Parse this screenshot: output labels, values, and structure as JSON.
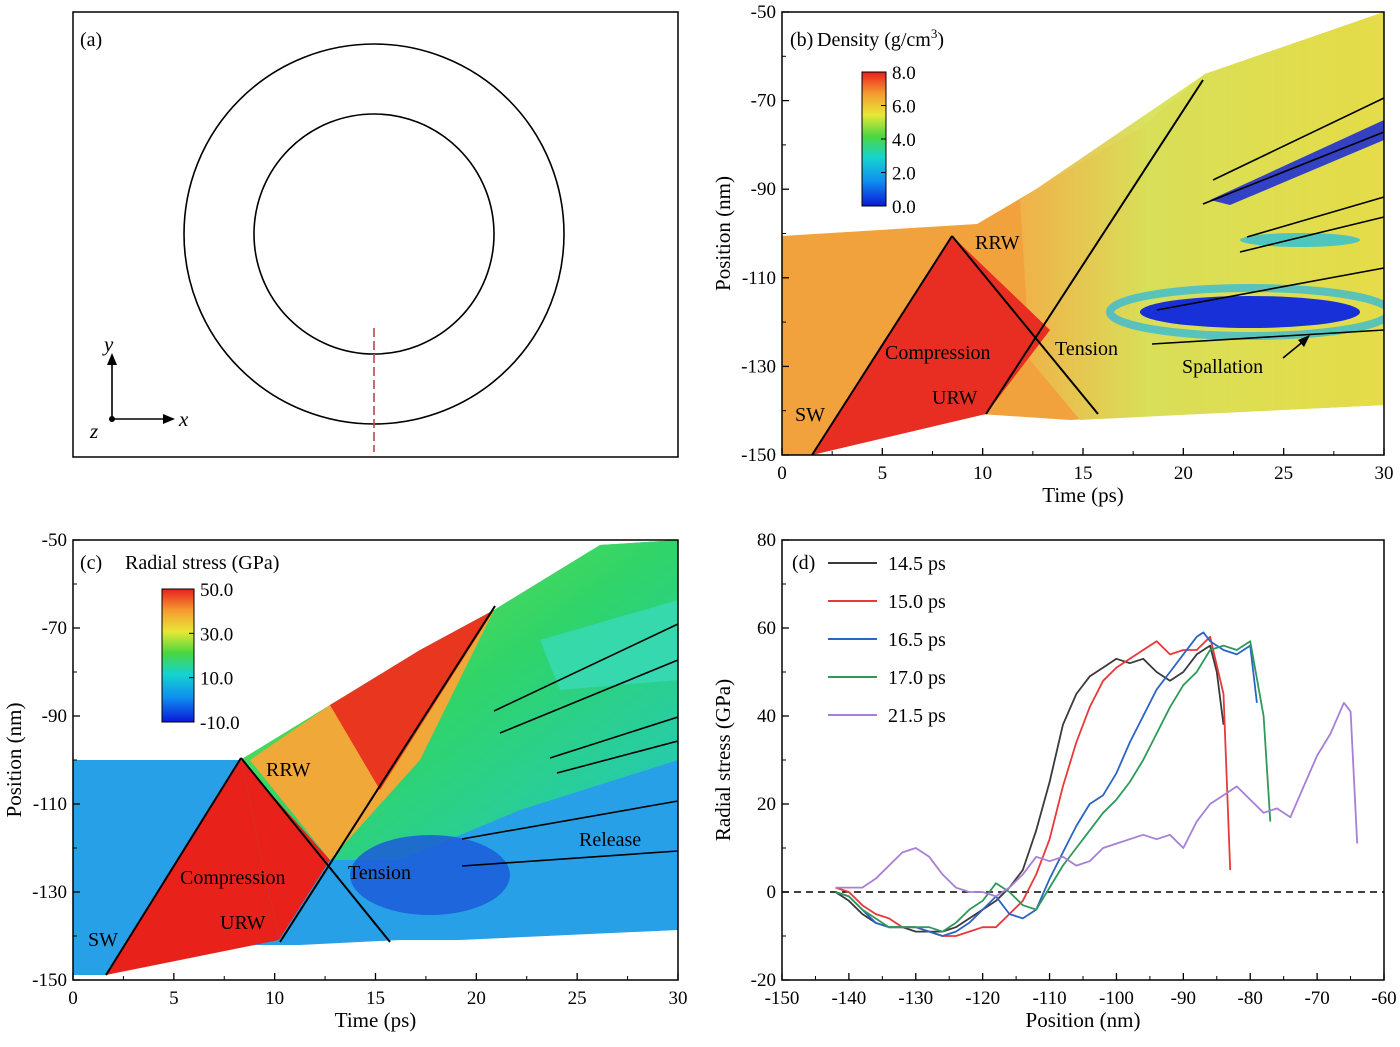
{
  "panels": {
    "a": {
      "label": "(a)",
      "axes": {
        "x": "x",
        "y": "y",
        "z": "z"
      }
    },
    "b": {
      "label": "(b)",
      "quantity_prefix": "Density (g/cm",
      "quantity_sup": "3",
      "quantity_suffix": ")",
      "colorbar": {
        "ticks": [
          "8.0",
          "6.0",
          "4.0",
          "2.0",
          "0.0"
        ],
        "min": 0,
        "max": 8
      },
      "annotations": {
        "sw": "SW",
        "rrw": "RRW",
        "urw": "URW",
        "compression": "Compression",
        "tension": "Tension",
        "spallation": "Spallation"
      }
    },
    "c": {
      "label": "(c)",
      "quantity": "Radial stress (GPa)",
      "colorbar": {
        "ticks": [
          "50.0",
          "30.0",
          "10.0",
          "-10.0"
        ],
        "min": -10,
        "max": 50
      },
      "annotations": {
        "sw": "SW",
        "rrw": "RRW",
        "urw": "URW",
        "compression": "Compression",
        "tension": "Tension",
        "release": "Release"
      }
    },
    "d": {
      "label": "(d)"
    }
  },
  "chart_data": [
    {
      "panel": "b",
      "type": "heatmap",
      "xlabel": "Time (ps)",
      "ylabel": "Position (nm)",
      "xlim": [
        0,
        30
      ],
      "ylim": [
        -150,
        -50
      ],
      "xticks": [
        0,
        5,
        10,
        15,
        20,
        25,
        30
      ],
      "yticks": [
        -150,
        -130,
        -110,
        -90,
        -70,
        -50
      ],
      "wave_lines": [
        {
          "name": "SW",
          "x": [
            1.6,
            8.5
          ],
          "y": [
            -149,
            -101
          ]
        },
        {
          "name": "RRW",
          "x": [
            8.5,
            15.8
          ],
          "y": [
            -101,
            -141
          ]
        },
        {
          "name": "URW",
          "x": [
            10.2,
            21.0
          ],
          "y": [
            -141,
            -66
          ]
        }
      ]
    },
    {
      "panel": "c",
      "type": "heatmap",
      "xlabel": "Time (ps)",
      "ylabel": "Position (nm)",
      "xlim": [
        0,
        30
      ],
      "ylim": [
        -150,
        -50
      ],
      "xticks": [
        0,
        5,
        10,
        15,
        20,
        25,
        30
      ],
      "yticks": [
        -150,
        -130,
        -110,
        -90,
        -70,
        -50
      ],
      "wave_lines": [
        {
          "name": "SW",
          "x": [
            1.6,
            8.5
          ],
          "y": [
            -149,
            -100
          ]
        },
        {
          "name": "RRW",
          "x": [
            8.5,
            15.8
          ],
          "y": [
            -100,
            -141
          ]
        },
        {
          "name": "URW",
          "x": [
            10.2,
            21.0
          ],
          "y": [
            -141,
            -64
          ]
        }
      ]
    },
    {
      "panel": "d",
      "type": "line",
      "xlabel": "Position (nm)",
      "ylabel": "Radial stress (GPa)",
      "xlim": [
        -150,
        -60
      ],
      "ylim": [
        -20,
        80
      ],
      "xticks": [
        -150,
        -140,
        -130,
        -120,
        -110,
        -100,
        -90,
        -80,
        -70,
        -60
      ],
      "yticks": [
        -20,
        0,
        20,
        40,
        60,
        80
      ],
      "series": [
        {
          "name": "14.5 ps",
          "color": "#3a3a3a",
          "x": [
            -142,
            -140,
            -138,
            -136,
            -134,
            -132,
            -130,
            -128,
            -126,
            -124,
            -122,
            -120,
            -118,
            -116,
            -114,
            -112,
            -110,
            -108,
            -106,
            -104,
            -102,
            -100,
            -98,
            -96,
            -94,
            -92,
            -90,
            -88,
            -86,
            -85,
            -84
          ],
          "y": [
            0,
            -2,
            -5,
            -7,
            -8,
            -8,
            -9,
            -9,
            -9,
            -8,
            -6,
            -4,
            -2,
            1,
            5,
            14,
            25,
            38,
            45,
            49,
            51,
            53,
            52,
            53,
            50,
            48,
            50,
            54,
            56,
            50,
            38
          ]
        },
        {
          "name": "15.0 ps",
          "color": "#e8393a",
          "x": [
            -142,
            -140,
            -138,
            -136,
            -134,
            -132,
            -130,
            -128,
            -126,
            -124,
            -122,
            -120,
            -118,
            -116,
            -114,
            -112,
            -110,
            -108,
            -106,
            -104,
            -102,
            -100,
            -98,
            -96,
            -94,
            -92,
            -90,
            -88,
            -86,
            -84,
            -83
          ],
          "y": [
            1,
            0,
            -3,
            -5,
            -6,
            -8,
            -8,
            -9,
            -10,
            -10,
            -9,
            -8,
            -8,
            -5,
            -2,
            4,
            12,
            24,
            34,
            42,
            48,
            51,
            53,
            55,
            57,
            54,
            55,
            55,
            58,
            45,
            5
          ]
        },
        {
          "name": "16.5 ps",
          "color": "#2a64c4",
          "x": [
            -142,
            -140,
            -138,
            -136,
            -134,
            -132,
            -130,
            -128,
            -126,
            -124,
            -122,
            -120,
            -118,
            -116,
            -114,
            -112,
            -110,
            -108,
            -106,
            -104,
            -102,
            -100,
            -98,
            -96,
            -94,
            -92,
            -90,
            -88,
            -87,
            -86,
            -84,
            -82,
            -80,
            -79
          ],
          "y": [
            0,
            -1,
            -4,
            -7,
            -8,
            -8,
            -8,
            -9,
            -10,
            -9,
            -7,
            -4,
            -1,
            -5,
            -6,
            -4,
            3,
            9,
            15,
            20,
            22,
            27,
            34,
            40,
            46,
            50,
            54,
            58,
            59,
            57,
            55,
            54,
            56,
            43
          ]
        },
        {
          "name": "17.0 ps",
          "color": "#2e9a5a",
          "x": [
            -142,
            -140,
            -138,
            -136,
            -134,
            -132,
            -130,
            -128,
            -126,
            -124,
            -122,
            -120,
            -118,
            -116,
            -114,
            -112,
            -110,
            -108,
            -106,
            -104,
            -102,
            -100,
            -98,
            -96,
            -94,
            -92,
            -90,
            -88,
            -86,
            -84,
            -82,
            -80,
            -78,
            -77
          ],
          "y": [
            0,
            -1,
            -4,
            -6,
            -8,
            -8,
            -8,
            -8,
            -9,
            -7,
            -4,
            -2,
            2,
            0,
            -3,
            -4,
            1,
            6,
            10,
            14,
            18,
            21,
            25,
            30,
            36,
            42,
            47,
            50,
            55,
            56,
            55,
            57,
            40,
            16
          ]
        },
        {
          "name": "21.5 ps",
          "color": "#a77fd6",
          "x": [
            -142,
            -140,
            -138,
            -136,
            -134,
            -132,
            -130,
            -128,
            -126,
            -124,
            -122,
            -120,
            -118,
            -116,
            -114,
            -112,
            -110,
            -108,
            -106,
            -104,
            -102,
            -100,
            -98,
            -96,
            -94,
            -92,
            -90,
            -88,
            -86,
            -84,
            -82,
            -80,
            -78,
            -76,
            -74,
            -72,
            -70,
            -68,
            -66,
            -65,
            -64
          ],
          "y": [
            1,
            1,
            1,
            3,
            6,
            9,
            10,
            8,
            4,
            1,
            0,
            0,
            -1,
            1,
            4,
            8,
            7,
            8,
            6,
            7,
            10,
            11,
            12,
            13,
            12,
            13,
            10,
            16,
            20,
            22,
            24,
            21,
            18,
            19,
            17,
            24,
            31,
            36,
            43,
            41,
            11
          ]
        }
      ],
      "reference_line": {
        "y": 0,
        "style": "dashed"
      }
    }
  ]
}
